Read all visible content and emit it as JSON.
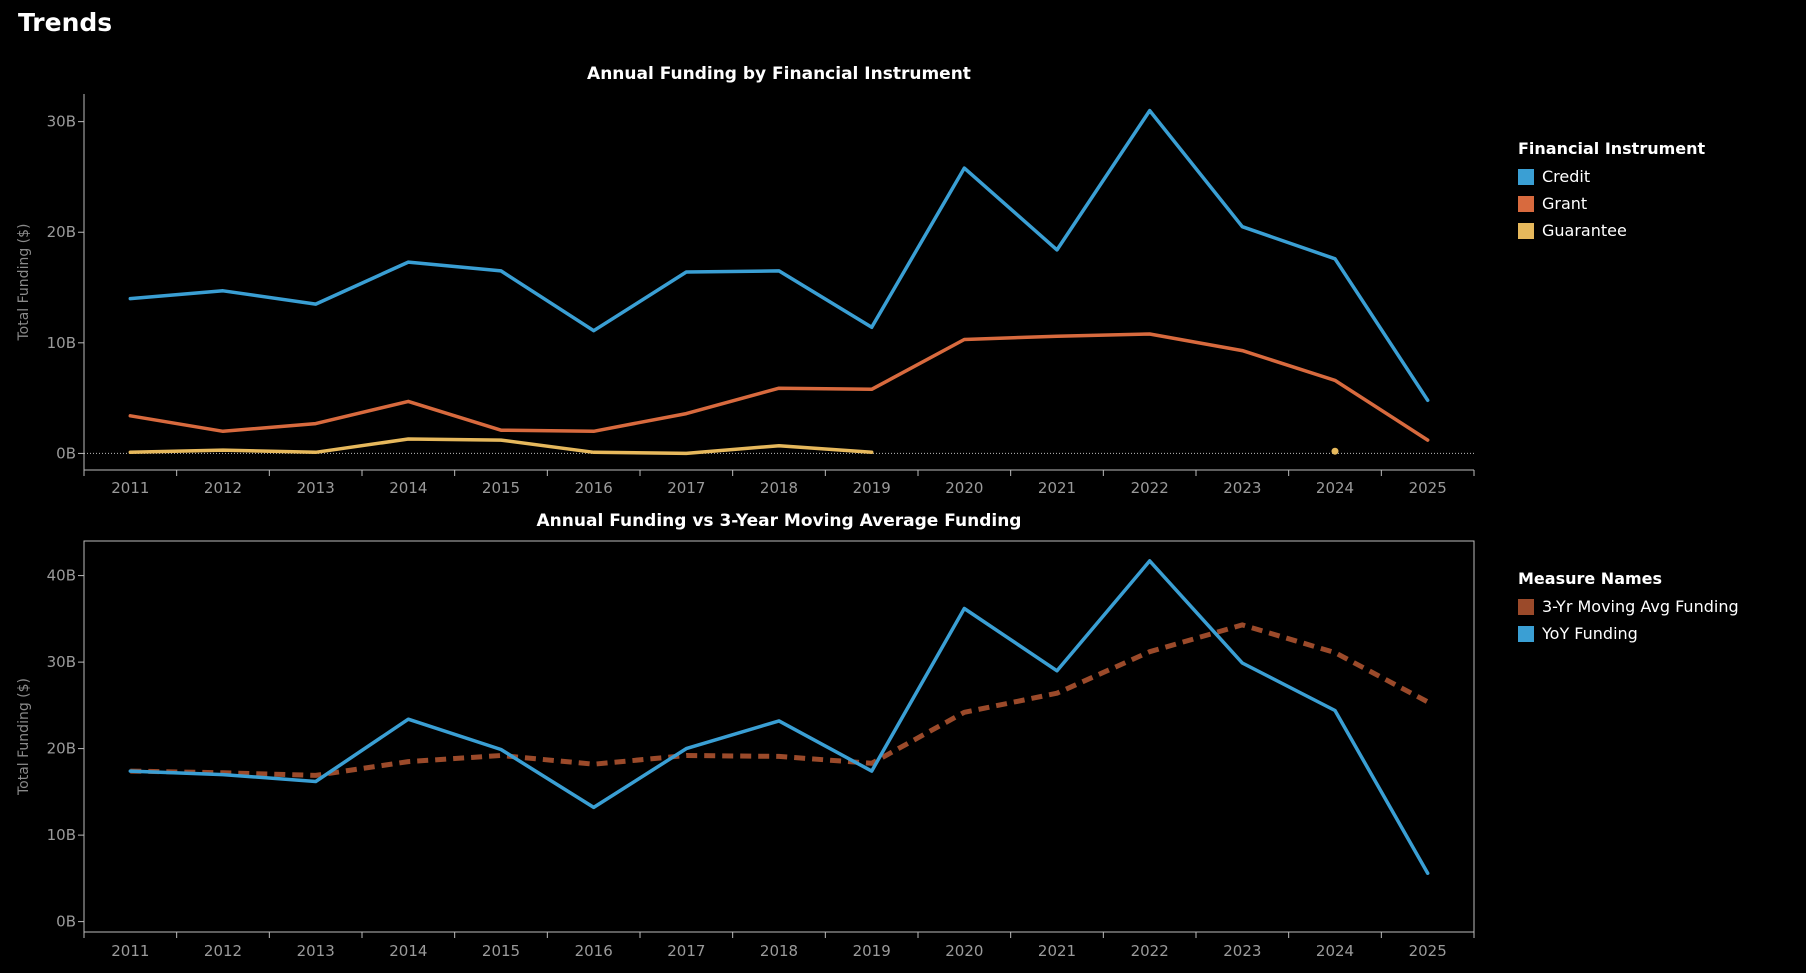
{
  "page": {
    "title": "Trends"
  },
  "colors": {
    "credit": "#3a9fd4",
    "grant": "#d86a3e",
    "guarantee": "#e6b85c",
    "moving_avg": "#9b4a2a",
    "yoy": "#3a9fd4"
  },
  "chart_data": [
    {
      "type": "line",
      "title": "Annual Funding by Financial Instrument",
      "ylabel": "Total Funding ($)",
      "xlabel": "",
      "x": [
        "2011",
        "2012",
        "2013",
        "2014",
        "2015",
        "2016",
        "2017",
        "2018",
        "2019",
        "2020",
        "2021",
        "2022",
        "2023",
        "2024",
        "2025"
      ],
      "ylim": [
        -1.5,
        32.5
      ],
      "yticks": [
        0,
        10,
        20,
        30
      ],
      "ytick_labels": [
        "0B",
        "10B",
        "20B",
        "30B"
      ],
      "zero_line": true,
      "border": false,
      "legend": {
        "title": "Financial  Instrument",
        "position": "right",
        "items": [
          {
            "label": "Credit",
            "color_key": "credit"
          },
          {
            "label": "Grant",
            "color_key": "grant"
          },
          {
            "label": "Guarantee",
            "color_key": "guarantee"
          }
        ]
      },
      "series": [
        {
          "name": "Credit",
          "color_key": "credit",
          "dashed": false,
          "values": [
            14.0,
            14.7,
            13.5,
            17.3,
            16.5,
            11.1,
            16.4,
            16.5,
            11.4,
            25.8,
            18.4,
            31.0,
            20.5,
            17.6,
            4.8
          ]
        },
        {
          "name": "Grant",
          "color_key": "grant",
          "dashed": false,
          "values": [
            3.4,
            2.0,
            2.7,
            4.7,
            2.1,
            2.0,
            3.6,
            5.9,
            5.8,
            10.3,
            10.6,
            10.8,
            9.3,
            6.6,
            1.2
          ]
        },
        {
          "name": "Guarantee",
          "color_key": "guarantee",
          "dashed": false,
          "isolated_points": [
            13
          ],
          "values": [
            0.1,
            0.3,
            0.1,
            1.3,
            1.2,
            0.1,
            0.0,
            0.7,
            0.1,
            null,
            null,
            null,
            null,
            0.2,
            null
          ]
        }
      ]
    },
    {
      "type": "line",
      "title": "Annual Funding vs 3-Year Moving Average Funding",
      "ylabel": "Total Funding ($)",
      "xlabel": "",
      "x": [
        "2011",
        "2012",
        "2013",
        "2014",
        "2015",
        "2016",
        "2017",
        "2018",
        "2019",
        "2020",
        "2021",
        "2022",
        "2023",
        "2024",
        "2025"
      ],
      "ylim": [
        -1.2,
        44
      ],
      "yticks": [
        0,
        10,
        20,
        30,
        40
      ],
      "ytick_labels": [
        "0B",
        "10B",
        "20B",
        "30B",
        "40B"
      ],
      "zero_line": false,
      "border": true,
      "legend": {
        "title": "Measure Names",
        "position": "right",
        "items": [
          {
            "label": "3-Yr Moving Avg Funding",
            "color_key": "moving_avg"
          },
          {
            "label": "YoY Funding",
            "color_key": "yoy"
          }
        ]
      },
      "series": [
        {
          "name": "3-Yr Moving Avg Funding",
          "color_key": "moving_avg",
          "dashed": true,
          "values": [
            17.4,
            17.2,
            16.9,
            18.5,
            19.2,
            18.2,
            19.2,
            19.1,
            18.3,
            24.2,
            26.4,
            31.2,
            34.3,
            31.1,
            25.4
          ]
        },
        {
          "name": "YoY Funding",
          "color_key": "yoy",
          "dashed": false,
          "values": [
            17.4,
            17.0,
            16.2,
            23.4,
            19.9,
            13.2,
            20.0,
            23.2,
            17.4,
            36.2,
            29.0,
            41.7,
            29.9,
            24.4,
            5.6
          ]
        }
      ]
    }
  ]
}
